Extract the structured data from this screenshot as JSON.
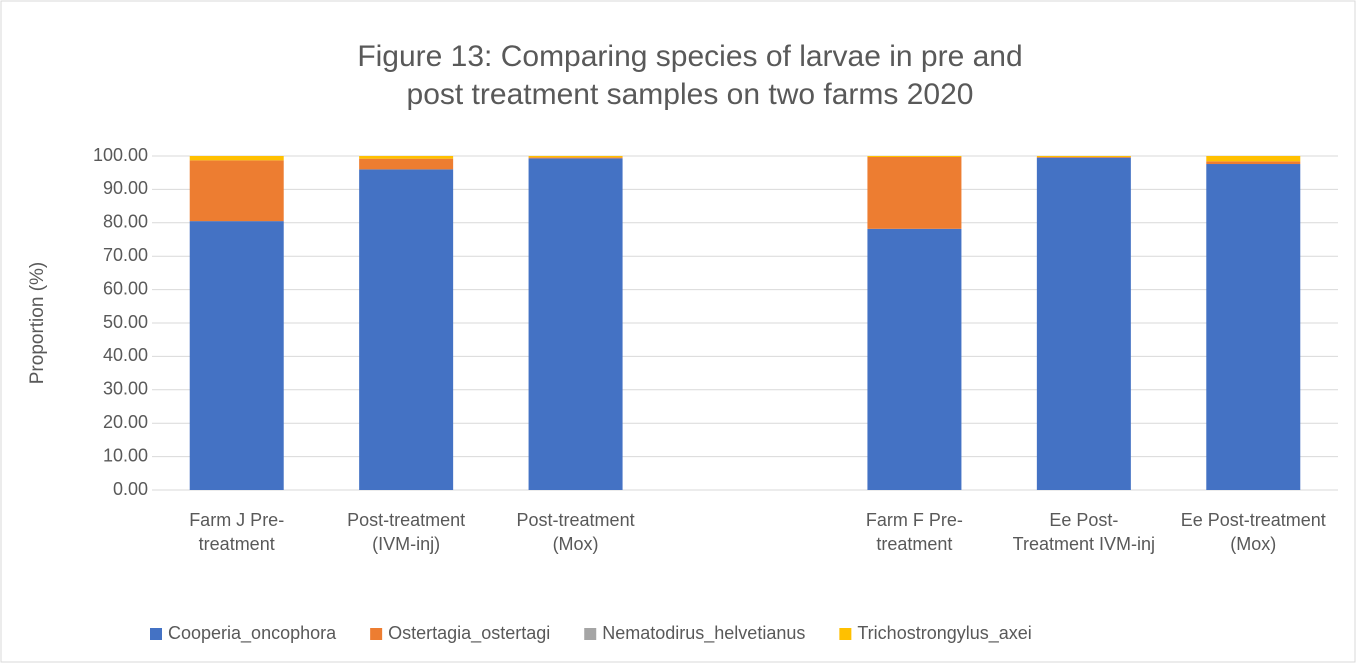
{
  "chart_data": {
    "type": "stacked_bar",
    "title": "Figure 13: Comparing species of larvae in pre and post treatment samples on two farms 2020",
    "y_label": "Proportion (%)",
    "categories": [
      "Farm J Pre-treatment",
      "Post-treatment (IVM-inj)",
      "Post-treatment (Mox)",
      null,
      "Farm F Pre-treatment",
      "Ee Post-Treatment IVM-inj",
      "Ee Post-treatment (Mox)"
    ],
    "series": [
      {
        "name": "Cooperia_oncophora",
        "color": "#4472c4",
        "values": [
          80.5,
          96,
          99.3,
          null,
          78.2,
          99.5,
          97.6
        ]
      },
      {
        "name": "Ostertagia_ostertagi",
        "color": "#ed7d31",
        "values": [
          18.2,
          3.2,
          0.3,
          null,
          21.5,
          0.2,
          0.8
        ]
      },
      {
        "name": "Nematodirus_helvetianus",
        "color": "#a5a5a5",
        "values": [
          0,
          0,
          0,
          null,
          0,
          0,
          0
        ]
      },
      {
        "name": "Trichostrongylus_axei",
        "color": "#ffc000",
        "values": [
          1.3,
          0.8,
          0.4,
          null,
          0.3,
          0.3,
          1.6
        ]
      }
    ],
    "ylim": [
      0,
      100
    ],
    "yticks": [
      {
        "value": 0,
        "label": "0.00"
      },
      {
        "value": 10,
        "label": "10.00"
      },
      {
        "value": 20,
        "label": "20.00"
      },
      {
        "value": 30,
        "label": "30.00"
      },
      {
        "value": 40,
        "label": "40.00"
      },
      {
        "value": 50,
        "label": "50.00"
      },
      {
        "value": 60,
        "label": "60.00"
      },
      {
        "value": 70,
        "label": "70.00"
      },
      {
        "value": 80,
        "label": "80.00"
      },
      {
        "value": 90,
        "label": "90.00"
      },
      {
        "value": 100,
        "label": "100.00"
      }
    ],
    "grid": true,
    "legend": "bottom"
  }
}
